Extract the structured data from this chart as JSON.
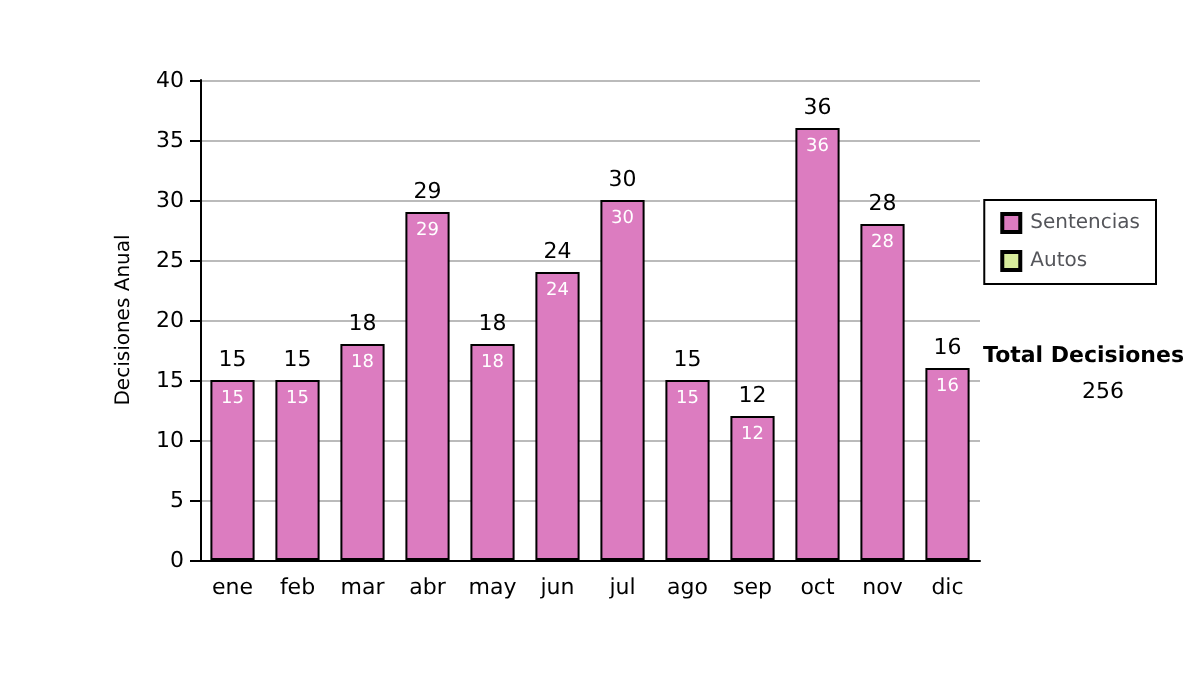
{
  "chart_data": {
    "type": "bar",
    "stacked": true,
    "ylabel": "Decisiones Anual",
    "categories": [
      "ene",
      "feb",
      "mar",
      "abr",
      "may",
      "jun",
      "jul",
      "ago",
      "sep",
      "oct",
      "nov",
      "dic"
    ],
    "series": [
      {
        "name": "Sentencias",
        "color": "#dc7cc0",
        "values": [
          15,
          15,
          18,
          29,
          18,
          24,
          30,
          15,
          12,
          36,
          28,
          16
        ],
        "value_labels": [
          "15",
          "15",
          "18",
          "29",
          "18",
          "24",
          "30",
          "15",
          "12",
          "36",
          "28",
          "16"
        ]
      },
      {
        "name": "Autos",
        "color": "#d8ec9c",
        "values": [
          0,
          0,
          0,
          0,
          0,
          0,
          0,
          0,
          0,
          0,
          0,
          0
        ]
      }
    ],
    "totals": [
      "15",
      "15",
      "18",
      "29",
      "18",
      "24",
      "30",
      "15",
      "12",
      "36",
      "28",
      "16"
    ],
    "ylim": [
      0,
      40
    ],
    "yticks": [
      0,
      5,
      10,
      15,
      20,
      25,
      30,
      35,
      40
    ],
    "grid": "y",
    "legend": "right",
    "annotations": [
      "Total Decisiones",
      "256"
    ]
  }
}
